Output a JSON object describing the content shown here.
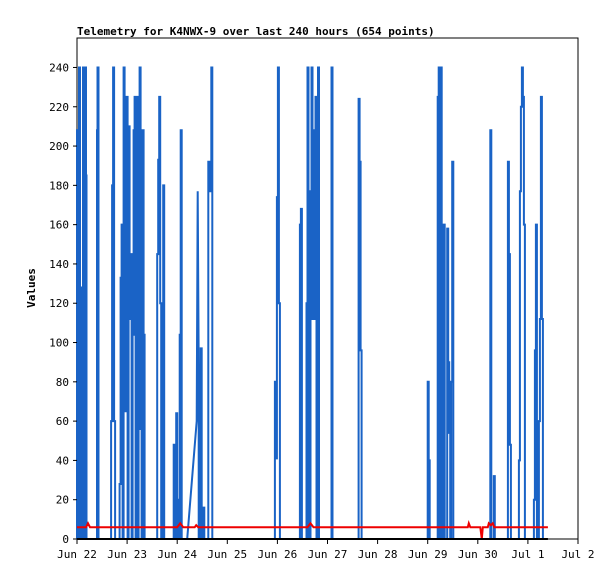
{
  "chart_data": {
    "type": "line",
    "title": "Telemetry for K4NWX-9 over last 240 hours (654 points)",
    "xlabel": "",
    "ylabel": "Values",
    "x_ticks": [
      "Jun 22",
      "Jun 23",
      "Jun 24",
      "Jun 25",
      "Jun 26",
      "Jun 27",
      "Jun 28",
      "Jun 29",
      "Jun 30",
      "Jul 1",
      "Jul 2"
    ],
    "x_range_days": [
      0,
      10
    ],
    "ylim": [
      0,
      255
    ],
    "y_ticks": [
      0,
      20,
      40,
      60,
      80,
      100,
      120,
      140,
      160,
      180,
      200,
      220,
      240
    ],
    "grid": false,
    "legend": "none",
    "colors": {
      "series_blue": "#1a63c6",
      "series_red": "#ee0000",
      "series_black": "#000000"
    },
    "series": [
      {
        "color": "#1a63c6",
        "points": [
          [
            0.0,
            0
          ],
          [
            0.0,
            208
          ],
          [
            0.02,
            208
          ],
          [
            0.02,
            0
          ],
          [
            0.04,
            0
          ],
          [
            0.04,
            240
          ],
          [
            0.06,
            240
          ],
          [
            0.06,
            0
          ],
          [
            0.08,
            0
          ],
          [
            0.08,
            128
          ],
          [
            0.1,
            128
          ],
          [
            0.1,
            0
          ],
          [
            0.12,
            0
          ],
          [
            0.12,
            240
          ],
          [
            0.14,
            240
          ],
          [
            0.14,
            0
          ],
          [
            0.16,
            0
          ],
          [
            0.16,
            240
          ],
          [
            0.18,
            240
          ],
          [
            0.18,
            185
          ],
          [
            0.19,
            185
          ],
          [
            0.19,
            0
          ],
          [
            0.4,
            0
          ],
          [
            0.4,
            208
          ],
          [
            0.41,
            208
          ],
          [
            0.41,
            240
          ],
          [
            0.43,
            240
          ],
          [
            0.43,
            0
          ],
          [
            0.68,
            0
          ],
          [
            0.68,
            60
          ],
          [
            0.7,
            60
          ],
          [
            0.7,
            180
          ],
          [
            0.72,
            180
          ],
          [
            0.72,
            240
          ],
          [
            0.74,
            240
          ],
          [
            0.74,
            60
          ],
          [
            0.76,
            60
          ],
          [
            0.76,
            0
          ],
          [
            0.85,
            0
          ],
          [
            0.85,
            28
          ],
          [
            0.87,
            28
          ],
          [
            0.87,
            133
          ],
          [
            0.89,
            133
          ],
          [
            0.89,
            160
          ],
          [
            0.91,
            160
          ],
          [
            0.91,
            0
          ],
          [
            0.93,
            0
          ],
          [
            0.93,
            240
          ],
          [
            0.95,
            240
          ],
          [
            0.95,
            177
          ],
          [
            0.97,
            177
          ],
          [
            0.97,
            65
          ],
          [
            0.99,
            65
          ],
          [
            0.99,
            225
          ],
          [
            1.01,
            225
          ],
          [
            1.01,
            0
          ],
          [
            1.03,
            0
          ],
          [
            1.03,
            210
          ],
          [
            1.05,
            210
          ],
          [
            1.05,
            112
          ],
          [
            1.07,
            112
          ],
          [
            1.07,
            145
          ],
          [
            1.09,
            145
          ],
          [
            1.09,
            0
          ],
          [
            1.11,
            0
          ],
          [
            1.11,
            104
          ],
          [
            1.13,
            104
          ],
          [
            1.13,
            208
          ],
          [
            1.15,
            208
          ],
          [
            1.15,
            225
          ],
          [
            1.17,
            225
          ],
          [
            1.17,
            0
          ],
          [
            1.19,
            0
          ],
          [
            1.19,
            225
          ],
          [
            1.21,
            225
          ],
          [
            1.21,
            0
          ],
          [
            1.23,
            0
          ],
          [
            1.23,
            180
          ],
          [
            1.25,
            180
          ],
          [
            1.25,
            240
          ],
          [
            1.27,
            240
          ],
          [
            1.27,
            56
          ],
          [
            1.29,
            56
          ],
          [
            1.29,
            0
          ],
          [
            1.31,
            0
          ],
          [
            1.31,
            208
          ],
          [
            1.33,
            208
          ],
          [
            1.33,
            104
          ],
          [
            1.35,
            104
          ],
          [
            1.35,
            0
          ],
          [
            1.6,
            0
          ],
          [
            1.6,
            145
          ],
          [
            1.62,
            145
          ],
          [
            1.62,
            193
          ],
          [
            1.64,
            193
          ],
          [
            1.64,
            225
          ],
          [
            1.66,
            225
          ],
          [
            1.66,
            120
          ],
          [
            1.68,
            120
          ],
          [
            1.68,
            0
          ],
          [
            1.72,
            0
          ],
          [
            1.72,
            180
          ],
          [
            1.74,
            180
          ],
          [
            1.74,
            0
          ],
          [
            1.93,
            0
          ],
          [
            1.93,
            48
          ],
          [
            1.95,
            48
          ],
          [
            1.95,
            0
          ],
          [
            1.98,
            0
          ],
          [
            1.98,
            64
          ],
          [
            2.0,
            64
          ],
          [
            2.0,
            20
          ],
          [
            2.02,
            20
          ],
          [
            2.02,
            0
          ],
          [
            2.05,
            0
          ],
          [
            2.05,
            104
          ],
          [
            2.07,
            104
          ],
          [
            2.07,
            208
          ],
          [
            2.09,
            208
          ],
          [
            2.09,
            0
          ],
          [
            2.2,
            0
          ],
          [
            2.39,
            60
          ],
          [
            2.41,
            177
          ],
          [
            2.43,
            88
          ],
          [
            2.43,
            0
          ],
          [
            2.47,
            0
          ],
          [
            2.47,
            97
          ],
          [
            2.49,
            97
          ],
          [
            2.49,
            0
          ],
          [
            2.52,
            0
          ],
          [
            2.52,
            16
          ],
          [
            2.54,
            16
          ],
          [
            2.54,
            0
          ],
          [
            2.62,
            0
          ],
          [
            2.62,
            192
          ],
          [
            2.64,
            192
          ],
          [
            2.64,
            177
          ],
          [
            2.66,
            177
          ],
          [
            2.66,
            192
          ],
          [
            2.68,
            192
          ],
          [
            2.68,
            240
          ],
          [
            2.7,
            240
          ],
          [
            2.7,
            0
          ],
          [
            3.95,
            0
          ],
          [
            3.95,
            80
          ],
          [
            3.97,
            80
          ],
          [
            3.97,
            41
          ],
          [
            3.99,
            41
          ],
          [
            3.99,
            174
          ],
          [
            4.01,
            174
          ],
          [
            4.01,
            240
          ],
          [
            4.03,
            240
          ],
          [
            4.03,
            120
          ],
          [
            4.05,
            120
          ],
          [
            4.05,
            0
          ],
          [
            4.45,
            0
          ],
          [
            4.45,
            160
          ],
          [
            4.47,
            160
          ],
          [
            4.47,
            168
          ],
          [
            4.49,
            168
          ],
          [
            4.49,
            0
          ],
          [
            4.58,
            0
          ],
          [
            4.58,
            120
          ],
          [
            4.6,
            120
          ],
          [
            4.6,
            240
          ],
          [
            4.62,
            240
          ],
          [
            4.62,
            0
          ],
          [
            4.66,
            0
          ],
          [
            4.66,
            177
          ],
          [
            4.68,
            177
          ],
          [
            4.68,
            240
          ],
          [
            4.7,
            240
          ],
          [
            4.7,
            112
          ],
          [
            4.72,
            112
          ],
          [
            4.72,
            208
          ],
          [
            4.74,
            208
          ],
          [
            4.74,
            112
          ],
          [
            4.76,
            112
          ],
          [
            4.76,
            225
          ],
          [
            4.78,
            225
          ],
          [
            4.78,
            0
          ],
          [
            4.81,
            0
          ],
          [
            4.81,
            240
          ],
          [
            4.83,
            240
          ],
          [
            4.83,
            0
          ],
          [
            5.08,
            0
          ],
          [
            5.08,
            240
          ],
          [
            5.1,
            240
          ],
          [
            5.1,
            0
          ],
          [
            5.62,
            0
          ],
          [
            5.62,
            224
          ],
          [
            5.64,
            224
          ],
          [
            5.64,
            192
          ],
          [
            5.66,
            192
          ],
          [
            5.66,
            96
          ],
          [
            5.68,
            96
          ],
          [
            5.68,
            0
          ],
          [
            7.0,
            0
          ],
          [
            7.0,
            80
          ],
          [
            7.02,
            80
          ],
          [
            7.02,
            40
          ],
          [
            7.04,
            40
          ],
          [
            7.04,
            0
          ],
          [
            7.2,
            0
          ],
          [
            7.2,
            225
          ],
          [
            7.22,
            225
          ],
          [
            7.22,
            240
          ],
          [
            7.24,
            240
          ],
          [
            7.24,
            0
          ],
          [
            7.26,
            0
          ],
          [
            7.26,
            240
          ],
          [
            7.28,
            240
          ],
          [
            7.28,
            0
          ],
          [
            7.32,
            0
          ],
          [
            7.32,
            160
          ],
          [
            7.34,
            160
          ],
          [
            7.34,
            0
          ],
          [
            7.39,
            0
          ],
          [
            7.39,
            158
          ],
          [
            7.41,
            158
          ],
          [
            7.41,
            90
          ],
          [
            7.43,
            90
          ],
          [
            7.43,
            54
          ],
          [
            7.45,
            54
          ],
          [
            7.45,
            0
          ],
          [
            7.47,
            0
          ],
          [
            7.47,
            80
          ],
          [
            7.49,
            80
          ],
          [
            7.49,
            192
          ],
          [
            7.51,
            192
          ],
          [
            7.51,
            0
          ],
          [
            8.25,
            0
          ],
          [
            8.25,
            208
          ],
          [
            8.27,
            208
          ],
          [
            8.27,
            0
          ],
          [
            8.32,
            0
          ],
          [
            8.32,
            32
          ],
          [
            8.34,
            32
          ],
          [
            8.34,
            0
          ],
          [
            8.6,
            0
          ],
          [
            8.6,
            192
          ],
          [
            8.62,
            192
          ],
          [
            8.62,
            145
          ],
          [
            8.64,
            145
          ],
          [
            8.64,
            48
          ],
          [
            8.66,
            48
          ],
          [
            8.66,
            0
          ],
          [
            8.82,
            0
          ],
          [
            8.82,
            40
          ],
          [
            8.84,
            40
          ],
          [
            8.84,
            177
          ],
          [
            8.86,
            177
          ],
          [
            8.86,
            220
          ],
          [
            8.88,
            220
          ],
          [
            8.88,
            240
          ],
          [
            8.9,
            240
          ],
          [
            8.9,
            225
          ],
          [
            8.92,
            225
          ],
          [
            8.92,
            160
          ],
          [
            8.94,
            160
          ],
          [
            8.94,
            0
          ],
          [
            9.12,
            0
          ],
          [
            9.12,
            20
          ],
          [
            9.14,
            20
          ],
          [
            9.14,
            96
          ],
          [
            9.16,
            96
          ],
          [
            9.16,
            160
          ],
          [
            9.18,
            160
          ],
          [
            9.18,
            0
          ],
          [
            9.22,
            0
          ],
          [
            9.22,
            60
          ],
          [
            9.24,
            60
          ],
          [
            9.24,
            112
          ],
          [
            9.26,
            112
          ],
          [
            9.26,
            225
          ],
          [
            9.28,
            225
          ],
          [
            9.28,
            112
          ],
          [
            9.3,
            112
          ],
          [
            9.3,
            0
          ]
        ]
      },
      {
        "color": "#ee0000",
        "points": [
          [
            0.0,
            6
          ],
          [
            0.18,
            6
          ],
          [
            0.22,
            8
          ],
          [
            0.26,
            6
          ],
          [
            2.0,
            6
          ],
          [
            2.06,
            8
          ],
          [
            2.12,
            6
          ],
          [
            2.35,
            6
          ],
          [
            2.38,
            7
          ],
          [
            2.42,
            6
          ],
          [
            4.6,
            6
          ],
          [
            4.66,
            8
          ],
          [
            4.72,
            6
          ],
          [
            7.8,
            6
          ],
          [
            7.82,
            8
          ],
          [
            7.85,
            6
          ],
          [
            8.05,
            6
          ],
          [
            8.08,
            0
          ],
          [
            8.1,
            6
          ],
          [
            8.2,
            6
          ],
          [
            8.22,
            8
          ],
          [
            8.26,
            7
          ],
          [
            8.3,
            8
          ],
          [
            8.33,
            6
          ],
          [
            9.4,
            6
          ]
        ]
      },
      {
        "color": "#000000",
        "points": [
          [
            0.0,
            0
          ],
          [
            9.4,
            0
          ]
        ]
      }
    ]
  }
}
